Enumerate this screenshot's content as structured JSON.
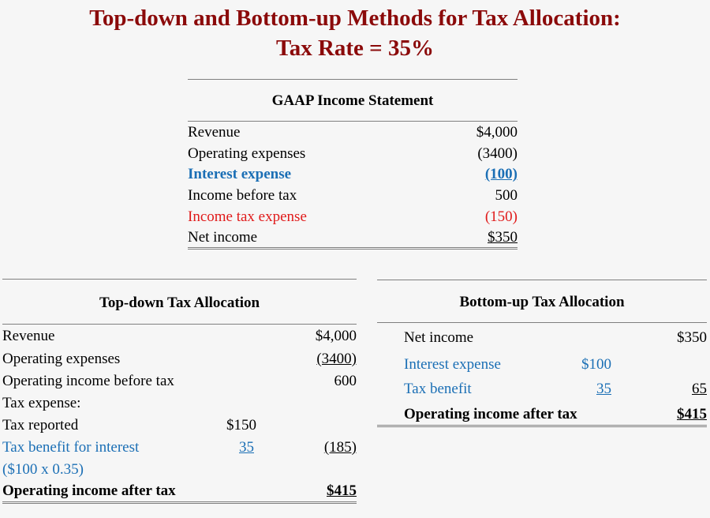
{
  "title": {
    "line1": "Top-down and Bottom-up Methods for Tax Allocation:",
    "line2": "Tax Rate = 35%"
  },
  "gaap": {
    "heading": "GAAP Income Statement",
    "rows": [
      {
        "label": "Revenue",
        "value": "$4,000"
      },
      {
        "label": "Operating expenses",
        "value": "(3400)"
      },
      {
        "label": "Interest expense",
        "value": "(100)"
      },
      {
        "label": "Income before tax",
        "value": "500"
      },
      {
        "label": "Income tax expense",
        "value": "(150)"
      },
      {
        "label": "Net income",
        "value": "$350"
      }
    ]
  },
  "topdown": {
    "heading": "Top-down  Tax Allocation",
    "rows": [
      {
        "label": "Revenue",
        "mid": "",
        "value": "$4,000"
      },
      {
        "label": "Operating expenses",
        "mid": "",
        "value": "(3400)"
      },
      {
        "label": "Operating income before tax",
        "mid": "",
        "value": "600"
      },
      {
        "label": "Tax expense:",
        "mid": "",
        "value": ""
      },
      {
        "label": "Tax reported",
        "mid": "$150",
        "value": ""
      },
      {
        "label": "Tax benefit for interest",
        "mid": "35",
        "value": "(185)"
      },
      {
        "label": "($100 x 0.35)",
        "mid": "",
        "value": ""
      },
      {
        "label": "Operating income after tax",
        "mid": "",
        "value": "$415"
      }
    ]
  },
  "bottomup": {
    "heading": "Bottom-up Tax Allocation",
    "rows": [
      {
        "label": "Net income",
        "mid": "",
        "value": "$350"
      },
      {
        "label": "Interest expense",
        "mid": "$100",
        "value": ""
      },
      {
        "label": "Tax benefit",
        "mid": "35",
        "value": "65"
      },
      {
        "label": "Operating income after tax",
        "mid": "",
        "value": "$415"
      }
    ]
  },
  "colors": {
    "title": "#8b0a0a",
    "blue": "#1b6fb5",
    "red": "#e01a1a",
    "rule": "#7f7f7f"
  }
}
